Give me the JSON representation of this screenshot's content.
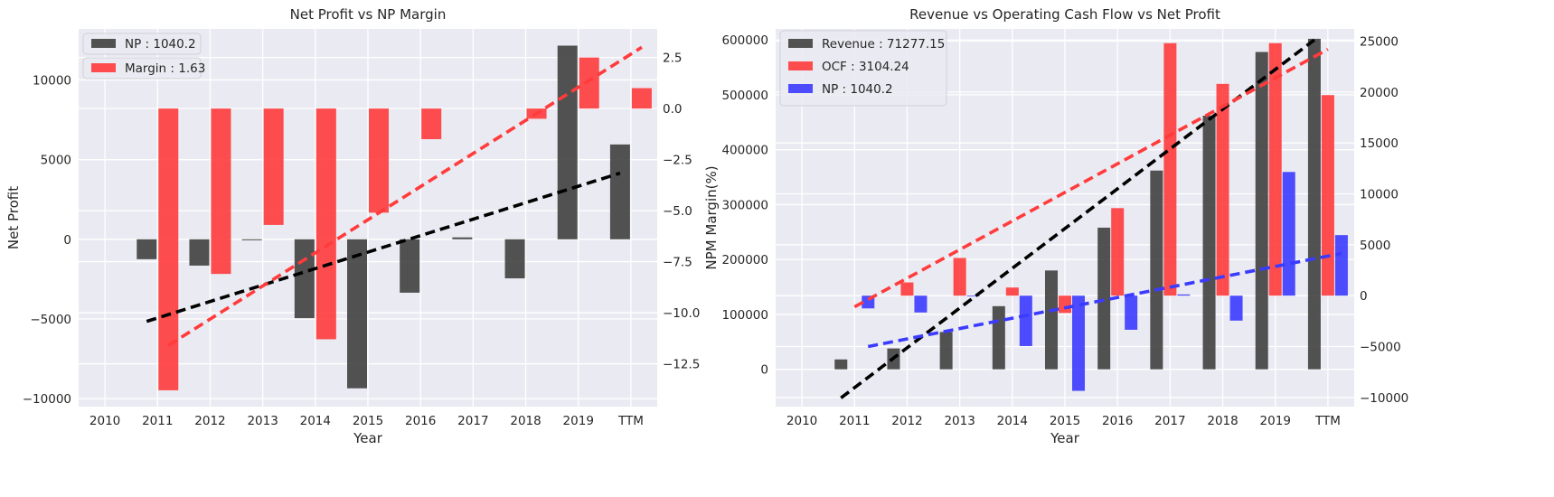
{
  "chart_data": [
    {
      "type": "bar",
      "title": "Net Profit vs NP Margin",
      "xlabel": "Year",
      "ylabel": "Net Profit",
      "y2label": "NPM Margin(%)",
      "grid": true,
      "legend_position": "top-left",
      "categories": [
        "2010",
        "2011",
        "2012",
        "2013",
        "2014",
        "2015",
        "2016",
        "2017",
        "2018",
        "2019",
        "TTM"
      ],
      "ylim": [
        -10500,
        13200
      ],
      "y2lim": [
        -14.6,
        3.9
      ],
      "yticks": [
        -10000,
        -5000,
        0,
        5000,
        10000
      ],
      "yticklabels": [
        "−10000",
        "−5000",
        "0",
        "5000",
        "10000"
      ],
      "y2ticks": [
        -12.5,
        -10.0,
        -7.5,
        -5.0,
        -2.5,
        0.0,
        2.5
      ],
      "y2ticklabels": [
        "−12.5",
        "−10.0",
        "−7.5",
        "−5.0",
        "−2.5",
        "0.0",
        "2.5"
      ],
      "series": [
        {
          "name": "NP : 1040.2",
          "axis": "left",
          "color": "#404040",
          "values": [
            0,
            -1250,
            -1650,
            -60,
            -4950,
            -9350,
            -3350,
            120,
            -2450,
            12150,
            5950
          ],
          "trend": [
            -5150,
            4150
          ]
        },
        {
          "name": "Margin : 1.63",
          "axis": "right",
          "color": "#ff3b3b",
          "values": [
            0,
            -13.8,
            -8.1,
            -5.7,
            -11.3,
            -5.1,
            -1.5,
            0.0,
            -0.5,
            2.5,
            1.0
          ],
          "trend": [
            -11.6,
            3.0
          ]
        }
      ]
    },
    {
      "type": "bar",
      "title": "Revenue vs Operating Cash Flow vs Net Profit",
      "xlabel": "Year",
      "ylabel": "",
      "grid": true,
      "legend_position": "top-left",
      "categories": [
        "2010",
        "2011",
        "2012",
        "2013",
        "2014",
        "2015",
        "2016",
        "2017",
        "2018",
        "2019",
        "TTM"
      ],
      "ylim": [
        -68000,
        620000
      ],
      "y2lim": [
        -10900,
        26200
      ],
      "yticks": [
        0,
        100000,
        200000,
        300000,
        400000,
        500000,
        600000
      ],
      "yticklabels": [
        "0",
        "100000",
        "200000",
        "300000",
        "400000",
        "500000",
        "600000"
      ],
      "y2ticks": [
        -10000,
        -5000,
        0,
        5000,
        10000,
        15000,
        20000,
        25000
      ],
      "y2ticklabels": [
        "−10000",
        "−5000",
        "0",
        "5000",
        "10000",
        "15000",
        "20000",
        "25000"
      ],
      "series": [
        {
          "name": "Revenue : 71277.15",
          "axis": "left",
          "color": "#404040",
          "values": [
            0,
            18000,
            38000,
            68000,
            115000,
            180000,
            258000,
            362000,
            462000,
            578000,
            602000
          ],
          "trend": [
            -52000,
            600000
          ]
        },
        {
          "name": "OCF : 3104.24",
          "axis": "right",
          "color": "#ff3b3b",
          "values": [
            0,
            0,
            1300,
            3700,
            800,
            -1700,
            8600,
            24800,
            20800,
            24800,
            19700
          ],
          "trend": [
            -1100,
            24200
          ]
        },
        {
          "name": "NP : 1040.2",
          "axis": "right",
          "color": "#3b3bff",
          "values": [
            0,
            -1250,
            -1650,
            -60,
            -4950,
            -9350,
            -3350,
            120,
            -2450,
            12150,
            5950
          ],
          "trend": [
            -5000,
            4150
          ]
        }
      ]
    }
  ]
}
